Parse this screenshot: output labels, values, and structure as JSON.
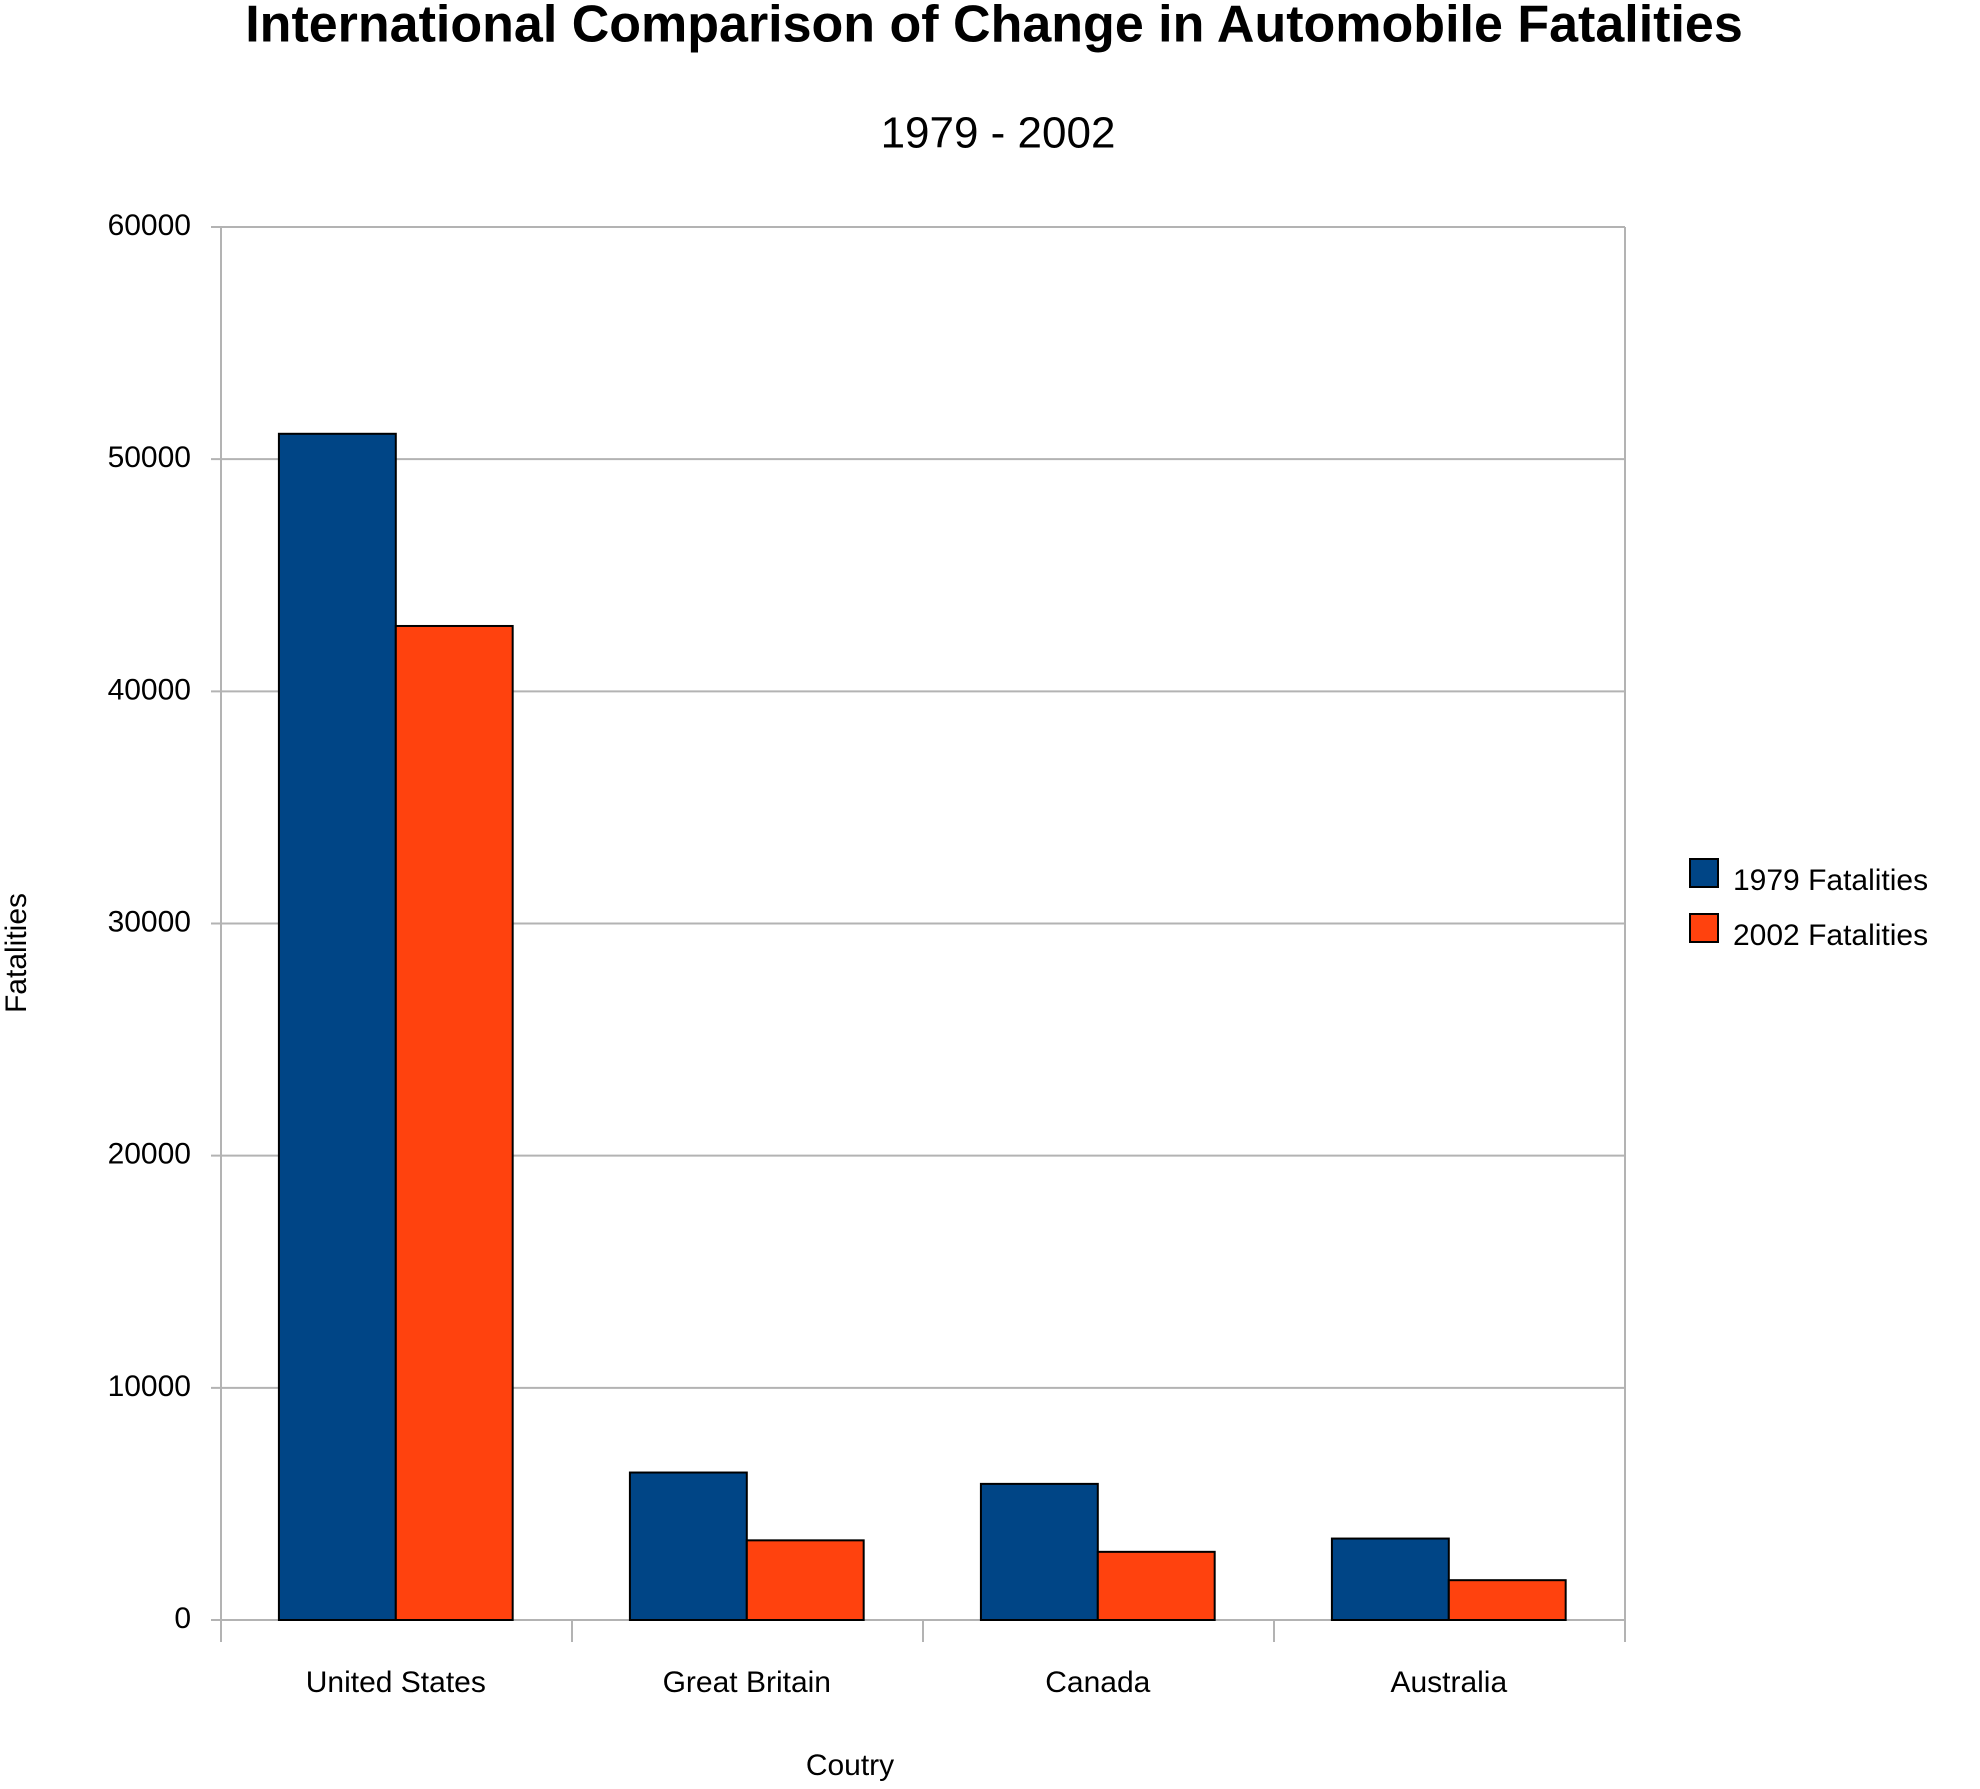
{
  "chart_data": {
    "type": "bar",
    "title": "International Comparison of Change in Automobile Fatalities",
    "subtitle": "1979 - 2002",
    "x_label": "Coutry",
    "y_label": "Fatalities",
    "categories": [
      "United States",
      "Great Britain",
      "Canada",
      "Australia"
    ],
    "series": [
      {
        "name": "1979 Fatalities",
        "color": "#004586",
        "values": [
          51093,
          6352,
          5863,
          3508
        ]
      },
      {
        "name": "2002 Fatalities",
        "color": "#ff420e",
        "values": [
          42815,
          3431,
          2936,
          1715
        ]
      }
    ],
    "ylim": [
      0,
      60000
    ],
    "yticks": [
      0,
      10000,
      20000,
      30000,
      40000,
      50000,
      60000
    ],
    "grid": true,
    "legend": "right"
  }
}
